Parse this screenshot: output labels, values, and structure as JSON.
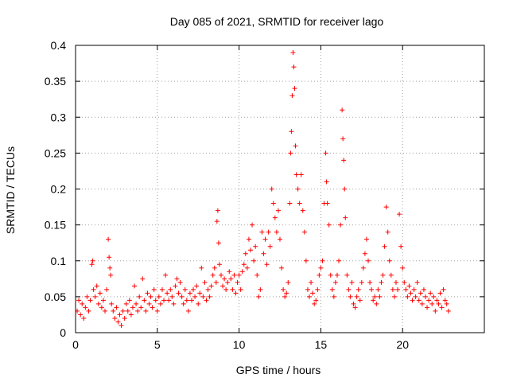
{
  "chart_data": {
    "type": "scatter",
    "title": "Day 085 of 2021, SRMTID for receiver lago",
    "xlabel": "GPS time / hours",
    "ylabel": "SRMTID / TECUs",
    "xlim": [
      0,
      25
    ],
    "ylim": [
      0,
      0.4
    ],
    "xticks": [
      "0",
      "5",
      "10",
      "15",
      "20"
    ],
    "xtick_values": [
      0,
      5,
      10,
      15,
      20
    ],
    "yticks": [
      "0",
      "0.05",
      "0.1",
      "0.15",
      "0.2",
      "0.25",
      "0.3",
      "0.35",
      "0.4"
    ],
    "ytick_values": [
      0,
      0.05,
      0.1,
      0.15,
      0.2,
      0.25,
      0.3,
      0.35,
      0.4
    ],
    "grid": true,
    "marker": "+",
    "series": [
      {
        "name": "SRMTID",
        "color": "#ff0000",
        "points": [
          [
            0.1,
            0.03
          ],
          [
            0.2,
            0.045
          ],
          [
            0.3,
            0.025
          ],
          [
            0.4,
            0.04
          ],
          [
            0.5,
            0.02
          ],
          [
            0.6,
            0.035
          ],
          [
            0.7,
            0.05
          ],
          [
            0.8,
            0.03
          ],
          [
            0.9,
            0.045
          ],
          [
            1.0,
            0.095
          ],
          [
            1.05,
            0.1
          ],
          [
            1.1,
            0.06
          ],
          [
            1.2,
            0.05
          ],
          [
            1.3,
            0.065
          ],
          [
            1.4,
            0.04
          ],
          [
            1.5,
            0.055
          ],
          [
            1.6,
            0.035
          ],
          [
            1.7,
            0.045
          ],
          [
            1.8,
            0.03
          ],
          [
            1.9,
            0.06
          ],
          [
            2.0,
            0.13
          ],
          [
            2.05,
            0.105
          ],
          [
            2.1,
            0.09
          ],
          [
            2.15,
            0.08
          ],
          [
            2.2,
            0.04
          ],
          [
            2.3,
            0.03
          ],
          [
            2.4,
            0.02
          ],
          [
            2.5,
            0.035
          ],
          [
            2.6,
            0.015
          ],
          [
            2.7,
            0.025
          ],
          [
            2.8,
            0.01
          ],
          [
            2.9,
            0.03
          ],
          [
            3.0,
            0.02
          ],
          [
            3.1,
            0.04
          ],
          [
            3.2,
            0.03
          ],
          [
            3.3,
            0.045
          ],
          [
            3.4,
            0.025
          ],
          [
            3.5,
            0.035
          ],
          [
            3.6,
            0.065
          ],
          [
            3.7,
            0.04
          ],
          [
            3.8,
            0.03
          ],
          [
            3.9,
            0.05
          ],
          [
            4.0,
            0.035
          ],
          [
            4.1,
            0.075
          ],
          [
            4.2,
            0.045
          ],
          [
            4.3,
            0.03
          ],
          [
            4.4,
            0.055
          ],
          [
            4.5,
            0.04
          ],
          [
            4.6,
            0.05
          ],
          [
            4.7,
            0.035
          ],
          [
            4.8,
            0.06
          ],
          [
            4.9,
            0.045
          ],
          [
            5.0,
            0.03
          ],
          [
            5.1,
            0.05
          ],
          [
            5.2,
            0.04
          ],
          [
            5.3,
            0.06
          ],
          [
            5.4,
            0.045
          ],
          [
            5.5,
            0.08
          ],
          [
            5.6,
            0.055
          ],
          [
            5.7,
            0.045
          ],
          [
            5.8,
            0.06
          ],
          [
            5.9,
            0.05
          ],
          [
            6.0,
            0.04
          ],
          [
            6.1,
            0.065
          ],
          [
            6.2,
            0.075
          ],
          [
            6.3,
            0.055
          ],
          [
            6.4,
            0.07
          ],
          [
            6.5,
            0.05
          ],
          [
            6.6,
            0.04
          ],
          [
            6.7,
            0.06
          ],
          [
            6.8,
            0.045
          ],
          [
            6.9,
            0.03
          ],
          [
            7.0,
            0.055
          ],
          [
            7.1,
            0.045
          ],
          [
            7.2,
            0.06
          ],
          [
            7.3,
            0.05
          ],
          [
            7.4,
            0.065
          ],
          [
            7.5,
            0.04
          ],
          [
            7.6,
            0.055
          ],
          [
            7.7,
            0.09
          ],
          [
            7.8,
            0.05
          ],
          [
            7.9,
            0.07
          ],
          [
            8.0,
            0.045
          ],
          [
            8.1,
            0.06
          ],
          [
            8.2,
            0.05
          ],
          [
            8.3,
            0.065
          ],
          [
            8.4,
            0.08
          ],
          [
            8.5,
            0.09
          ],
          [
            8.6,
            0.07
          ],
          [
            8.65,
            0.155
          ],
          [
            8.7,
            0.17
          ],
          [
            8.75,
            0.125
          ],
          [
            8.8,
            0.095
          ],
          [
            8.9,
            0.08
          ],
          [
            9.0,
            0.065
          ],
          [
            9.1,
            0.075
          ],
          [
            9.2,
            0.06
          ],
          [
            9.3,
            0.07
          ],
          [
            9.4,
            0.085
          ],
          [
            9.5,
            0.075
          ],
          [
            9.6,
            0.06
          ],
          [
            9.7,
            0.08
          ],
          [
            9.8,
            0.055
          ],
          [
            9.9,
            0.07
          ],
          [
            10.0,
            0.08
          ],
          [
            10.1,
            0.06
          ],
          [
            10.2,
            0.085
          ],
          [
            10.3,
            0.095
          ],
          [
            10.4,
            0.11
          ],
          [
            10.5,
            0.09
          ],
          [
            10.6,
            0.13
          ],
          [
            10.7,
            0.115
          ],
          [
            10.8,
            0.15
          ],
          [
            10.9,
            0.1
          ],
          [
            11.0,
            0.12
          ],
          [
            11.1,
            0.08
          ],
          [
            11.2,
            0.05
          ],
          [
            11.3,
            0.06
          ],
          [
            11.4,
            0.14
          ],
          [
            11.5,
            0.11
          ],
          [
            11.6,
            0.13
          ],
          [
            11.7,
            0.095
          ],
          [
            11.8,
            0.14
          ],
          [
            11.9,
            0.12
          ],
          [
            12.0,
            0.2
          ],
          [
            12.1,
            0.18
          ],
          [
            12.2,
            0.16
          ],
          [
            12.3,
            0.14
          ],
          [
            12.4,
            0.17
          ],
          [
            12.5,
            0.13
          ],
          [
            12.6,
            0.09
          ],
          [
            12.7,
            0.06
          ],
          [
            12.8,
            0.05
          ],
          [
            12.9,
            0.055
          ],
          [
            13.0,
            0.07
          ],
          [
            13.1,
            0.18
          ],
          [
            13.15,
            0.25
          ],
          [
            13.2,
            0.28
          ],
          [
            13.25,
            0.33
          ],
          [
            13.3,
            0.39
          ],
          [
            13.35,
            0.37
          ],
          [
            13.4,
            0.34
          ],
          [
            13.45,
            0.26
          ],
          [
            13.5,
            0.22
          ],
          [
            13.6,
            0.2
          ],
          [
            13.7,
            0.18
          ],
          [
            13.8,
            0.22
          ],
          [
            13.9,
            0.17
          ],
          [
            14.0,
            0.14
          ],
          [
            14.1,
            0.1
          ],
          [
            14.2,
            0.06
          ],
          [
            14.3,
            0.05
          ],
          [
            14.4,
            0.07
          ],
          [
            14.5,
            0.055
          ],
          [
            14.6,
            0.04
          ],
          [
            14.7,
            0.045
          ],
          [
            14.8,
            0.06
          ],
          [
            14.9,
            0.08
          ],
          [
            15.0,
            0.09
          ],
          [
            15.1,
            0.1
          ],
          [
            15.2,
            0.18
          ],
          [
            15.3,
            0.25
          ],
          [
            15.35,
            0.21
          ],
          [
            15.4,
            0.18
          ],
          [
            15.5,
            0.15
          ],
          [
            15.6,
            0.08
          ],
          [
            15.7,
            0.06
          ],
          [
            15.8,
            0.05
          ],
          [
            15.9,
            0.07
          ],
          [
            16.0,
            0.08
          ],
          [
            16.1,
            0.1
          ],
          [
            16.2,
            0.15
          ],
          [
            16.3,
            0.31
          ],
          [
            16.35,
            0.27
          ],
          [
            16.4,
            0.24
          ],
          [
            16.45,
            0.2
          ],
          [
            16.5,
            0.16
          ],
          [
            16.6,
            0.08
          ],
          [
            16.7,
            0.06
          ],
          [
            16.8,
            0.05
          ],
          [
            16.9,
            0.07
          ],
          [
            17.0,
            0.04
          ],
          [
            17.1,
            0.035
          ],
          [
            17.2,
            0.05
          ],
          [
            17.3,
            0.06
          ],
          [
            17.4,
            0.045
          ],
          [
            17.5,
            0.07
          ],
          [
            17.6,
            0.09
          ],
          [
            17.7,
            0.11
          ],
          [
            17.8,
            0.13
          ],
          [
            17.9,
            0.1
          ],
          [
            18.0,
            0.07
          ],
          [
            18.1,
            0.06
          ],
          [
            18.2,
            0.045
          ],
          [
            18.3,
            0.05
          ],
          [
            18.4,
            0.04
          ],
          [
            18.5,
            0.06
          ],
          [
            18.6,
            0.05
          ],
          [
            18.7,
            0.07
          ],
          [
            18.8,
            0.08
          ],
          [
            18.9,
            0.12
          ],
          [
            19.0,
            0.175
          ],
          [
            19.1,
            0.14
          ],
          [
            19.2,
            0.1
          ],
          [
            19.3,
            0.08
          ],
          [
            19.4,
            0.06
          ],
          [
            19.5,
            0.05
          ],
          [
            19.6,
            0.07
          ],
          [
            19.7,
            0.06
          ],
          [
            19.8,
            0.165
          ],
          [
            19.9,
            0.12
          ],
          [
            20.0,
            0.09
          ],
          [
            20.1,
            0.07
          ],
          [
            20.2,
            0.06
          ],
          [
            20.3,
            0.05
          ],
          [
            20.4,
            0.065
          ],
          [
            20.5,
            0.055
          ],
          [
            20.6,
            0.045
          ],
          [
            20.7,
            0.06
          ],
          [
            20.8,
            0.05
          ],
          [
            20.9,
            0.07
          ],
          [
            21.0,
            0.045
          ],
          [
            21.1,
            0.055
          ],
          [
            21.2,
            0.04
          ],
          [
            21.3,
            0.06
          ],
          [
            21.4,
            0.05
          ],
          [
            21.5,
            0.035
          ],
          [
            21.6,
            0.045
          ],
          [
            21.7,
            0.055
          ],
          [
            21.8,
            0.04
          ],
          [
            21.9,
            0.05
          ],
          [
            22.0,
            0.03
          ],
          [
            22.1,
            0.045
          ],
          [
            22.2,
            0.04
          ],
          [
            22.3,
            0.055
          ],
          [
            22.4,
            0.035
          ],
          [
            22.5,
            0.06
          ],
          [
            22.6,
            0.045
          ],
          [
            22.7,
            0.04
          ],
          [
            22.8,
            0.03
          ]
        ]
      }
    ]
  }
}
